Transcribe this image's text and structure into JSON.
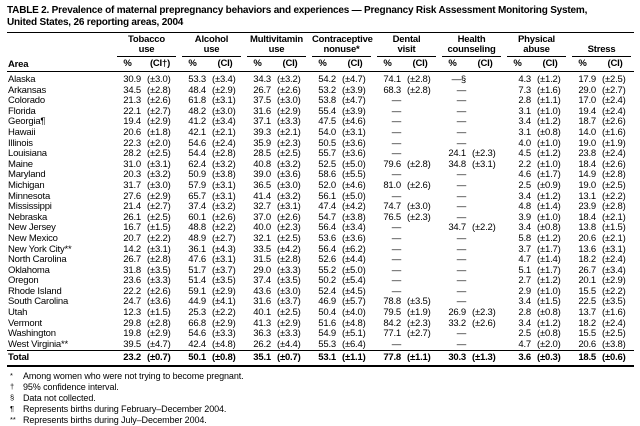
{
  "title": {
    "line1": "TABLE 2. Prevalence of maternal prepregnancy behaviors and experiences — Pregnancy Risk Assessment Monitoring System,",
    "line2": "United States, 26 reporting areas, 2004"
  },
  "table": {
    "area_header": "Area",
    "pct_label": "%",
    "columns": [
      {
        "l1": "Tobacco",
        "l2": "use",
        "ci": "(CI†)"
      },
      {
        "l1": "Alcohol",
        "l2": "use",
        "ci": "(CI)"
      },
      {
        "l1": "Multivitamin",
        "l2": "use",
        "ci": "(CI)"
      },
      {
        "l1": "Contraceptive",
        "l2": "nonuse*",
        "ci": "(CI)"
      },
      {
        "l1": "Dental",
        "l2": "visit",
        "ci": "(CI)"
      },
      {
        "l1": "Health",
        "l2": "counseling",
        "ci": "(CI)"
      },
      {
        "l1": "Physical",
        "l2": "abuse",
        "ci": "(CI)"
      },
      {
        "l1": "",
        "l2": "Stress",
        "ci": "(CI)"
      }
    ],
    "rows": [
      {
        "area": "Alaska",
        "v": [
          "30.9",
          "(±3.0)",
          "53.3",
          "(±3.4)",
          "34.3",
          "(±3.2)",
          "54.2",
          "(±4.7)",
          "74.1",
          "(±2.8)",
          "—§",
          "",
          "4.3",
          "(±1.2)",
          "17.9",
          "(±2.5)"
        ]
      },
      {
        "area": "Arkansas",
        "v": [
          "34.5",
          "(±2.8)",
          "48.4",
          "(±2.9)",
          "26.7",
          "(±2.6)",
          "53.2",
          "(±3.9)",
          "68.3",
          "(±2.8)",
          "—",
          "",
          "7.3",
          "(±1.6)",
          "29.0",
          "(±2.7)"
        ]
      },
      {
        "area": "Colorado",
        "v": [
          "21.3",
          "(±2.6)",
          "61.8",
          "(±3.1)",
          "37.5",
          "(±3.0)",
          "53.8",
          "(±4.7)",
          "—",
          "",
          "—",
          "",
          "2.8",
          "(±1.1)",
          "17.0",
          "(±2.4)"
        ]
      },
      {
        "area": "Florida",
        "v": [
          "22.1",
          "(±2.7)",
          "48.2",
          "(±3.0)",
          "31.6",
          "(±2.9)",
          "55.4",
          "(±3.9)",
          "—",
          "",
          "—",
          "",
          "3.1",
          "(±1.0)",
          "19.4",
          "(±2.4)"
        ]
      },
      {
        "area": "Georgia¶",
        "v": [
          "19.4",
          "(±2.9)",
          "41.2",
          "(±3.4)",
          "37.1",
          "(±3.3)",
          "47.5",
          "(±4.6)",
          "—",
          "",
          "—",
          "",
          "3.4",
          "(±1.2)",
          "18.7",
          "(±2.6)"
        ]
      },
      {
        "area": "Hawaii",
        "v": [
          "20.6",
          "(±1.8)",
          "42.1",
          "(±2.1)",
          "39.3",
          "(±2.1)",
          "54.0",
          "(±3.1)",
          "—",
          "",
          "—",
          "",
          "3.1",
          "(±0.8)",
          "14.0",
          "(±1.6)"
        ]
      },
      {
        "area": "Illinois",
        "v": [
          "22.3",
          "(±2.0)",
          "54.6",
          "(±2.4)",
          "35.9",
          "(±2.3)",
          "50.5",
          "(±3.6)",
          "—",
          "",
          "—",
          "",
          "4.0",
          "(±1.0)",
          "19.0",
          "(±1.9)"
        ]
      },
      {
        "area": "Louisiana",
        "v": [
          "28.2",
          "(±2.5)",
          "54.4",
          "(±2.8)",
          "28.5",
          "(±2.5)",
          "55.7",
          "(±3.6)",
          "—",
          "",
          "24.1",
          "(±2.3)",
          "4.5",
          "(±1.2)",
          "23.8",
          "(±2.4)"
        ]
      },
      {
        "area": "Maine",
        "v": [
          "31.0",
          "(±3.1)",
          "62.4",
          "(±3.2)",
          "40.8",
          "(±3.2)",
          "52.5",
          "(±5.0)",
          "79.6",
          "(±2.8)",
          "34.8",
          "(±3.1)",
          "2.2",
          "(±1.0)",
          "18.4",
          "(±2.6)"
        ]
      },
      {
        "area": "Maryland",
        "v": [
          "20.3",
          "(±3.2)",
          "50.9",
          "(±3.8)",
          "39.0",
          "(±3.6)",
          "58.6",
          "(±5.5)",
          "—",
          "",
          "—",
          "",
          "4.6",
          "(±1.7)",
          "14.9",
          "(±2.8)"
        ]
      },
      {
        "area": "Michigan",
        "v": [
          "31.7",
          "(±3.0)",
          "57.9",
          "(±3.1)",
          "36.5",
          "(±3.0)",
          "52.0",
          "(±4.6)",
          "81.0",
          "(±2.6)",
          "—",
          "",
          "2.5",
          "(±0.9)",
          "19.0",
          "(±2.5)"
        ]
      },
      {
        "area": "Minnesota",
        "v": [
          "27.6",
          "(±2.9)",
          "65.7",
          "(±3.1)",
          "41.4",
          "(±3.2)",
          "56.1",
          "(±5.0)",
          "—",
          "",
          "—",
          "",
          "3.4",
          "(±1.2)",
          "13.1",
          "(±2.2)"
        ]
      },
      {
        "area": "Mississippi",
        "v": [
          "21.4",
          "(±2.7)",
          "37.4",
          "(±3.2)",
          "32.7",
          "(±3.1)",
          "47.4",
          "(±4.2)",
          "74.7",
          "(±3.0)",
          "—",
          "",
          "4.8",
          "(±1.4)",
          "23.9",
          "(±2.8)"
        ]
      },
      {
        "area": "Nebraska",
        "v": [
          "26.1",
          "(±2.5)",
          "60.1",
          "(±2.6)",
          "37.0",
          "(±2.6)",
          "54.7",
          "(±3.8)",
          "76.5",
          "(±2.3)",
          "—",
          "",
          "3.9",
          "(±1.0)",
          "18.4",
          "(±2.1)"
        ]
      },
      {
        "area": "New Jersey",
        "v": [
          "16.7",
          "(±1.5)",
          "48.8",
          "(±2.2)",
          "40.0",
          "(±2.3)",
          "56.4",
          "(±3.4)",
          "—",
          "",
          "34.7",
          "(±2.2)",
          "3.4",
          "(±0.8)",
          "13.8",
          "(±1.5)"
        ]
      },
      {
        "area": "New Mexico",
        "v": [
          "20.7",
          "(±2.2)",
          "48.9",
          "(±2.7)",
          "32.1",
          "(±2.5)",
          "53.6",
          "(±3.6)",
          "—",
          "",
          "—",
          "",
          "5.8",
          "(±1.2)",
          "20.6",
          "(±2.1)"
        ]
      },
      {
        "area": "New York City**",
        "v": [
          "14.2",
          "(±3.1)",
          "36.1",
          "(±4.3)",
          "33.5",
          "(±4.2)",
          "56.4",
          "(±6.2)",
          "—",
          "",
          "—",
          "",
          "3.7",
          "(±1.7)",
          "13.6",
          "(±3.1)"
        ]
      },
      {
        "area": "North Carolina",
        "v": [
          "26.7",
          "(±2.8)",
          "47.6",
          "(±3.1)",
          "31.5",
          "(±2.8)",
          "52.6",
          "(±4.4)",
          "—",
          "",
          "—",
          "",
          "4.7",
          "(±1.4)",
          "18.2",
          "(±2.4)"
        ]
      },
      {
        "area": "Oklahoma",
        "v": [
          "31.8",
          "(±3.5)",
          "51.7",
          "(±3.7)",
          "29.0",
          "(±3.3)",
          "55.2",
          "(±5.0)",
          "—",
          "",
          "—",
          "",
          "5.1",
          "(±1.7)",
          "26.7",
          "(±3.4)"
        ]
      },
      {
        "area": "Oregon",
        "v": [
          "23.6",
          "(±3.3)",
          "51.4",
          "(±3.5)",
          "37.4",
          "(±3.5)",
          "50.2",
          "(±5.4)",
          "—",
          "",
          "—",
          "",
          "2.7",
          "(±1.2)",
          "20.1",
          "(±2.9)"
        ]
      },
      {
        "area": "Rhode Island",
        "v": [
          "22.2",
          "(±2.6)",
          "59.1",
          "(±2.9)",
          "43.6",
          "(±3.0)",
          "52.4",
          "(±4.5)",
          "—",
          "",
          "—",
          "",
          "2.9",
          "(±1.0)",
          "15.5",
          "(±2.2)"
        ]
      },
      {
        "area": "South Carolina",
        "v": [
          "24.7",
          "(±3.6)",
          "44.9",
          "(±4.1)",
          "31.6",
          "(±3.7)",
          "46.9",
          "(±5.7)",
          "78.8",
          "(±3.5)",
          "—",
          "",
          "3.4",
          "(±1.5)",
          "22.5",
          "(±3.5)"
        ]
      },
      {
        "area": "Utah",
        "v": [
          "12.3",
          "(±1.5)",
          "25.3",
          "(±2.2)",
          "40.1",
          "(±2.5)",
          "50.4",
          "(±4.0)",
          "79.5",
          "(±1.9)",
          "26.9",
          "(±2.3)",
          "2.8",
          "(±0.8)",
          "13.7",
          "(±1.6)"
        ]
      },
      {
        "area": "Vermont",
        "v": [
          "29.8",
          "(±2.8)",
          "66.8",
          "(±2.9)",
          "41.3",
          "(±2.9)",
          "51.6",
          "(±4.8)",
          "84.2",
          "(±2.3)",
          "33.2",
          "(±2.6)",
          "3.4",
          "(±1.2)",
          "18.2",
          "(±2.4)"
        ]
      },
      {
        "area": "Washington",
        "v": [
          "19.8",
          "(±2.9)",
          "54.6",
          "(±3.3)",
          "36.3",
          "(±3.3)",
          "54.9",
          "(±5.1)",
          "77.1",
          "(±2.7)",
          "—",
          "",
          "2.5",
          "(±0.8)",
          "15.5",
          "(±2.5)"
        ]
      },
      {
        "area": "West Virginia**",
        "v": [
          "39.5",
          "(±4.7)",
          "42.4",
          "(±4.8)",
          "26.2",
          "(±4.4)",
          "55.3",
          "(±6.4)",
          "—",
          "",
          "—",
          "",
          "4.7",
          "(±2.0)",
          "20.6",
          "(±3.8)"
        ]
      },
      {
        "area": "Total",
        "total": true,
        "v": [
          "23.2",
          "(±0.7)",
          "50.1",
          "(±0.8)",
          "35.1",
          "(±0.7)",
          "53.1",
          "(±1.1)",
          "77.8",
          "(±1.1)",
          "30.3",
          "(±1.3)",
          "3.6",
          "(±0.3)",
          "18.5",
          "(±0.6)"
        ]
      }
    ]
  },
  "footnotes": [
    {
      "marker": "*",
      "text": "Among women who were not trying to become pregnant."
    },
    {
      "marker": "†",
      "text": "95% confidence interval."
    },
    {
      "marker": "§",
      "text": "Data not collected."
    },
    {
      "marker": "¶",
      "text": "Represents births during February–December 2004."
    },
    {
      "marker": "**",
      "text": "Represents births during July–December 2004."
    }
  ]
}
